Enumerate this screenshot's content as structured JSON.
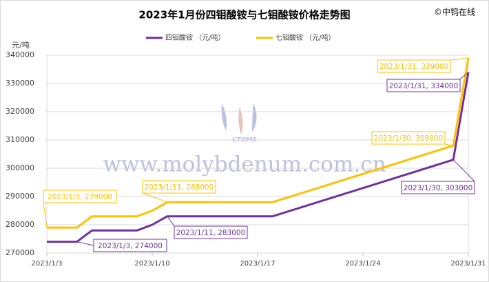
{
  "chart_data": {
    "type": "line",
    "title": "2023年1月份四钼酸铵与七钼酸铵价格走势图",
    "source": "©中钨在线",
    "y_label": "元/吨",
    "watermark": "www.molybdenum.com.cn",
    "logo_text": "CTOMS",
    "x": [
      "2023/1/3",
      "2023/1/4",
      "2023/1/5",
      "2023/1/6",
      "2023/1/9",
      "2023/1/10",
      "2023/1/11",
      "2023/1/12",
      "2023/1/13",
      "2023/1/16",
      "2023/1/17",
      "2023/1/18",
      "2023/1/30",
      "2023/1/31"
    ],
    "xlim": [
      "2023/1/3",
      "2023/1/31"
    ],
    "xticks": [
      "2023/1/3",
      "2023/1/10",
      "2023/1/17",
      "2023/1/24",
      "2023/1/31"
    ],
    "ylim": [
      270000,
      340000
    ],
    "yticks": [
      270000,
      280000,
      290000,
      300000,
      310000,
      320000,
      330000,
      340000
    ],
    "grid": true,
    "legend": "top",
    "series": [
      {
        "name": "四钼酸铵 （元/吨）",
        "color": "#7030a0",
        "values": [
          274000,
          274000,
          274000,
          278000,
          278000,
          280000,
          283000,
          283000,
          283000,
          283000,
          283000,
          283000,
          303000,
          334000
        ],
        "annotations": [
          "2023/1/3, 274000",
          "2023/1/11, 283000",
          "2023/1/30, 303000",
          "2023/1/31, 334000"
        ]
      },
      {
        "name": "七钼酸铵 （元/吨）",
        "color": "#ffc000",
        "values": [
          279000,
          279000,
          279000,
          283000,
          283000,
          285000,
          288000,
          288000,
          288000,
          288000,
          288000,
          288000,
          308000,
          339000
        ],
        "annotations": [
          "2023/1/3, 279000",
          "2023/1/11, 288000",
          "2023/1/30, 308000",
          "2023/1/31, 339000"
        ]
      }
    ]
  }
}
